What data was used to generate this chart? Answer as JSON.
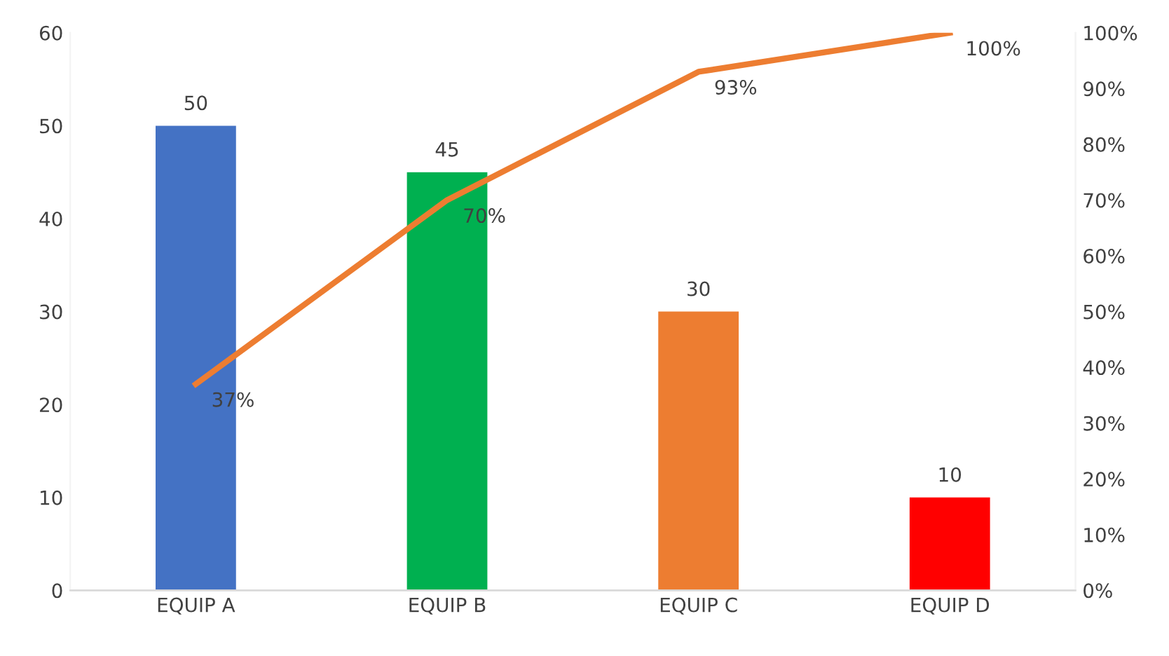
{
  "chart_data": {
    "type": "bar",
    "categories": [
      "EQUIP A",
      "EQUIP B",
      "EQUIP C",
      "EQUIP D"
    ],
    "series": [
      {
        "colors": [
          "#4472c4",
          "#00b050",
          "#ed7d31",
          "#ff0000"
        ],
        "values": [
          50,
          45,
          30,
          10
        ],
        "value_labels": [
          "50",
          "45",
          "30",
          "10"
        ]
      },
      {
        "type": "line",
        "axis": "y2",
        "color": "#ed7d31",
        "values": [
          37,
          70,
          93,
          100
        ],
        "value_labels": [
          "37%",
          "70%",
          "93%",
          "100%"
        ]
      }
    ],
    "ylim": [
      0,
      60
    ],
    "yticks": [
      0,
      10,
      20,
      30,
      40,
      50,
      60
    ],
    "y2lim": [
      0,
      100
    ],
    "y2ticks": [
      {
        "value": 0,
        "label": "0%"
      },
      {
        "value": 10,
        "label": "10%"
      },
      {
        "value": 20,
        "label": "20%"
      },
      {
        "value": 30,
        "label": "30%"
      },
      {
        "value": 40,
        "label": "40%"
      },
      {
        "value": 50,
        "label": "50%"
      },
      {
        "value": 60,
        "label": "60%"
      },
      {
        "value": 70,
        "label": "70%"
      },
      {
        "value": 80,
        "label": "80%"
      },
      {
        "value": 90,
        "label": "90%"
      },
      {
        "value": 100,
        "label": "100%"
      }
    ],
    "grid": false,
    "legend": false,
    "marker": "none",
    "line_style": "solid"
  }
}
